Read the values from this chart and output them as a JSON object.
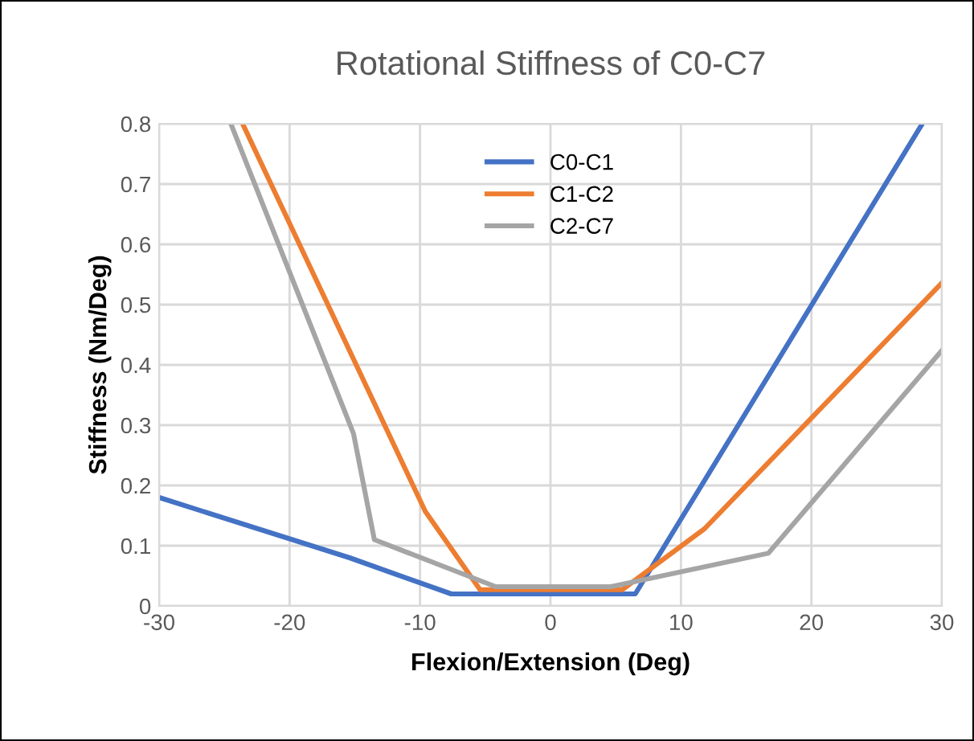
{
  "chart_data": {
    "type": "line",
    "title": "Rotational Stiffness of C0-C7",
    "xlabel": "Flexion/Extension (Deg)",
    "ylabel": "Stiffness (Nm/Deg)",
    "xlim": [
      -30,
      30
    ],
    "xticks": [
      -30,
      -20,
      -10,
      0,
      10,
      20,
      30
    ],
    "ylim": [
      0,
      0.8
    ],
    "yticks": [
      0,
      0.1,
      0.2,
      0.3,
      0.4,
      0.5,
      0.6,
      0.7,
      0.8
    ],
    "grid": true,
    "legend": "top",
    "marker": "none",
    "line_style": "solid",
    "series": [
      {
        "name": "C0-C1",
        "color": "#4472c4",
        "x": [
          -30,
          -15.4,
          -7.6,
          6.5,
          28.5
        ],
        "values": [
          0.18,
          0.08,
          0.02,
          0.02,
          0.8
        ]
      },
      {
        "name": "C1-C2",
        "color": "#ed7d31",
        "x": [
          -23.6,
          -9.6,
          -5.4,
          5.5,
          11.8,
          30
        ],
        "values": [
          0.8,
          0.157,
          0.027,
          0.027,
          0.128,
          0.536
        ]
      },
      {
        "name": "C2-C7",
        "color": "#a5a5a5",
        "x": [
          -24.5,
          -15.1,
          -13.5,
          -4.2,
          4.6,
          16.7,
          30
        ],
        "values": [
          0.8,
          0.286,
          0.11,
          0.032,
          0.032,
          0.0875,
          0.424
        ]
      }
    ]
  }
}
